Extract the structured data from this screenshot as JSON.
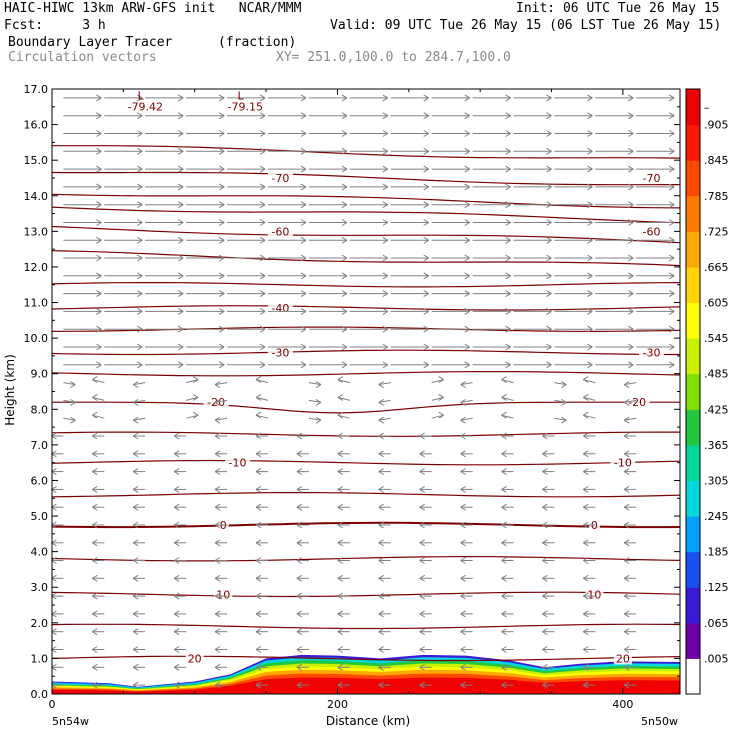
{
  "header": {
    "line1_left": "HAIC-HIWC 13km ARW-GFS init   NCAR/MMM",
    "line1_right": "Init: 06 UTC Tue 26 May 15",
    "line2_left": "Fcst:     3 h",
    "line2_right": "Valid: 09 UTC Tue 26 May 15 (06 LST Tue 26 May 15)",
    "line3_field": "Boundary Layer Tracer",
    "line3_units": "(fraction)",
    "line4_field": "Circulation vectors",
    "line4_xy": "XY= 251.0,100.0 to 284.7,100.0"
  },
  "colors": {
    "contour": "#7a0000",
    "vector": "#808080",
    "colorbar": [
      "#ffffff",
      "#6a00a8",
      "#3b1ad6",
      "#1a50f0",
      "#00a0ff",
      "#00d8e0",
      "#00d89a",
      "#20c840",
      "#80e000",
      "#c8f000",
      "#ffff00",
      "#ffd400",
      "#ffa800",
      "#ff7800",
      "#ff4800",
      "#ff1800",
      "#f00000"
    ]
  },
  "chart_data": {
    "type": "cross-section",
    "ylabel": "Height (km)",
    "xlabel": "Distance (km)",
    "x_range": [
      0,
      440
    ],
    "y_range": [
      0,
      17
    ],
    "y_ticks": [
      "0.0",
      "1.0",
      "2.0",
      "3.0",
      "4.0",
      "5.0",
      "6.0",
      "7.0",
      "8.0",
      "9.0",
      "10.0",
      "11.0",
      "12.0",
      "13.0",
      "14.0",
      "15.0",
      "16.0",
      "17.0"
    ],
    "x_ticks": [
      "0",
      "200",
      "400"
    ],
    "x_endpoints": [
      "5n54w",
      "5n50w"
    ],
    "colorbar_labels": [
      ".005",
      ".065",
      ".125",
      ".185",
      ".245",
      ".305",
      ".365",
      ".425",
      ".485",
      ".545",
      ".605",
      ".665",
      ".725",
      ".785",
      ".845",
      ".905",
      "–"
    ],
    "contours": [
      {
        "label": "20",
        "labels_x": [
          100,
          400
        ]
      },
      {
        "label": "10",
        "labels_x": [
          120,
          380
        ]
      },
      {
        "label": "0",
        "labels_x": [
          120,
          380
        ]
      },
      {
        "label": "-10",
        "labels_x": [
          130,
          400
        ]
      },
      {
        "label": "-20",
        "labels_x": [
          115,
          410
        ]
      },
      {
        "label": "-30",
        "labels_x": [
          160,
          420
        ]
      },
      {
        "label": "-40",
        "labels_x": [
          160
        ]
      },
      {
        "label": "-60",
        "labels_x": [
          160,
          420
        ]
      },
      {
        "label": "-70",
        "labels_x": [
          160,
          420
        ]
      }
    ],
    "minima": [
      {
        "label": "L",
        "value": "-79.42"
      },
      {
        "label": "L",
        "value": "-79.15"
      }
    ]
  }
}
